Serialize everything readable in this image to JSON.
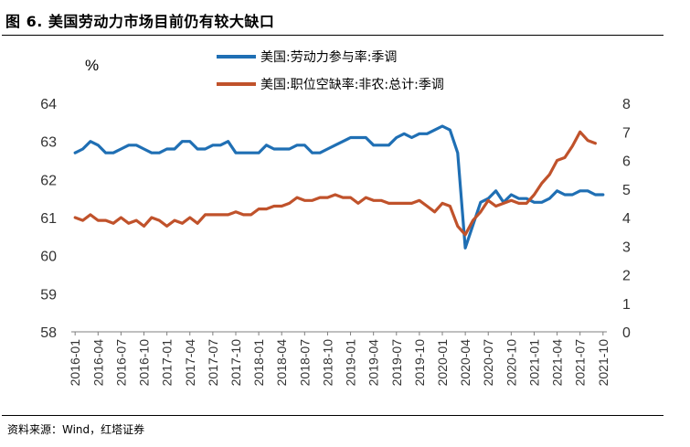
{
  "header": {
    "title": "图 6. 美国劳动力市场目前仍有较大缺口"
  },
  "footer": {
    "source": "资料来源：Wind，红塔证券"
  },
  "colors": {
    "blue": "#1f6fb4",
    "orange": "#c0522b"
  },
  "chart_data": {
    "type": "line",
    "left_axis_unit": "%",
    "y_left": {
      "range": [
        58,
        64
      ],
      "ticks": [
        "64",
        "63",
        "62",
        "61",
        "60",
        "59",
        "58"
      ]
    },
    "y_right": {
      "range": [
        0,
        8
      ],
      "ticks": [
        "8",
        "7",
        "6",
        "5",
        "4",
        "3",
        "2",
        "1",
        "0"
      ]
    },
    "x_tick_labels": [
      "2016-01",
      "2016-04",
      "2016-07",
      "2016-10",
      "2017-01",
      "2017-04",
      "2017-07",
      "2017-10",
      "2018-01",
      "2018-04",
      "2018-07",
      "2018-10",
      "2019-01",
      "2019-04",
      "2019-07",
      "2019-10",
      "2020-01",
      "2020-04",
      "2020-07",
      "2020-10",
      "2021-01",
      "2021-04",
      "2021-07",
      "2021-10"
    ],
    "legend_position": "top-center",
    "series": [
      {
        "name": "美国:劳动力参与率:季调",
        "axis": "left",
        "color": "#1f6fb4",
        "values": [
          62.7,
          62.8,
          63.0,
          62.9,
          62.7,
          62.7,
          62.8,
          62.9,
          62.9,
          62.8,
          62.7,
          62.7,
          62.8,
          62.8,
          63.0,
          63.0,
          62.8,
          62.8,
          62.9,
          62.9,
          63.0,
          62.7,
          62.7,
          62.7,
          62.7,
          62.9,
          62.8,
          62.8,
          62.8,
          62.9,
          62.9,
          62.7,
          62.7,
          62.8,
          62.9,
          63.0,
          63.1,
          63.1,
          63.1,
          62.9,
          62.9,
          62.9,
          63.1,
          63.2,
          63.1,
          63.2,
          63.2,
          63.3,
          63.4,
          63.3,
          62.7,
          60.2,
          60.8,
          61.4,
          61.5,
          61.7,
          61.4,
          61.6,
          61.5,
          61.5,
          61.4,
          61.4,
          61.5,
          61.7,
          61.6,
          61.6,
          61.7,
          61.7,
          61.6,
          61.6
        ]
      },
      {
        "name": "美国:职位空缺率:非农:总计:季调",
        "axis": "right",
        "color": "#c0522b",
        "values": [
          4.0,
          3.9,
          4.1,
          3.9,
          3.9,
          3.8,
          4.0,
          3.8,
          3.9,
          3.7,
          4.0,
          3.9,
          3.7,
          3.9,
          3.8,
          4.0,
          3.8,
          4.1,
          4.1,
          4.1,
          4.1,
          4.2,
          4.1,
          4.1,
          4.3,
          4.3,
          4.4,
          4.4,
          4.5,
          4.7,
          4.6,
          4.6,
          4.7,
          4.7,
          4.8,
          4.7,
          4.7,
          4.5,
          4.7,
          4.6,
          4.6,
          4.5,
          4.5,
          4.5,
          4.5,
          4.6,
          4.4,
          4.2,
          4.5,
          4.4,
          3.7,
          3.4,
          3.9,
          4.2,
          4.6,
          4.4,
          4.5,
          4.6,
          4.5,
          4.5,
          4.8,
          5.2,
          5.5,
          6.0,
          6.1,
          6.5,
          7.0,
          6.7,
          6.6
        ]
      }
    ]
  }
}
